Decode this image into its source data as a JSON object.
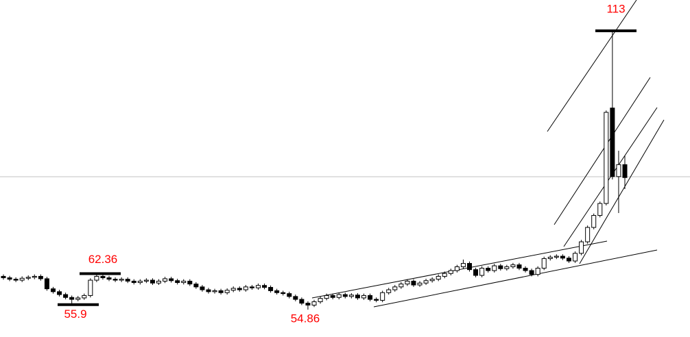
{
  "chart_data": {
    "type": "candlestick",
    "open": [
      61.8,
      61.5,
      61.2,
      61.0,
      61.4,
      61.6,
      61.8,
      61.3,
      59.2,
      58.6,
      58.0,
      57.4,
      57.0,
      57.3,
      57.8,
      61.0,
      61.8,
      61.5,
      61.2,
      61.0,
      61.2,
      60.8,
      60.5,
      60.8,
      61.0,
      60.4,
      60.8,
      61.3,
      60.9,
      60.5,
      60.8,
      60.2,
      59.6,
      59.0,
      58.6,
      58.8,
      58.4,
      58.9,
      59.3,
      59.0,
      59.6,
      59.4,
      59.9,
      59.5,
      58.8,
      58.4,
      58.2,
      57.6,
      57.0,
      56.2,
      55.8,
      56.5,
      57.2,
      57.8,
      57.4,
      58.0,
      57.6,
      57.9,
      57.3,
      57.8,
      57.0,
      56.8,
      58.4,
      59.0,
      59.6,
      60.2,
      60.8,
      60.0,
      60.4,
      60.9,
      61.2,
      61.8,
      62.4,
      63.0,
      63.8,
      64.5,
      63.2,
      62.0,
      63.5,
      63.0,
      64.0,
      63.4,
      63.8,
      64.2,
      63.5,
      63.0,
      62.2,
      63.5,
      65.5,
      65.8,
      66.0,
      65.6,
      65.0,
      66.6,
      69.0,
      72.0,
      74.5,
      77.0,
      96.9,
      82.6,
      85.1
    ],
    "high": [
      62.2,
      61.9,
      61.6,
      61.8,
      62.0,
      62.2,
      62.2,
      61.7,
      59.6,
      59.0,
      58.4,
      57.8,
      57.7,
      58.2,
      61.4,
      62.36,
      62.2,
      61.9,
      61.6,
      61.6,
      61.6,
      61.2,
      61.2,
      61.4,
      61.4,
      61.2,
      61.7,
      61.7,
      61.3,
      61.2,
      61.2,
      60.6,
      60.0,
      59.4,
      59.2,
      59.2,
      59.3,
      59.7,
      59.7,
      60.0,
      60.0,
      60.3,
      60.3,
      59.9,
      59.2,
      58.8,
      58.6,
      58.0,
      57.4,
      56.6,
      56.9,
      57.6,
      58.2,
      58.2,
      58.4,
      58.4,
      58.3,
      58.3,
      58.2,
      58.2,
      57.4,
      58.8,
      59.4,
      60.0,
      60.6,
      61.2,
      61.2,
      60.8,
      61.3,
      61.6,
      62.2,
      62.8,
      63.4,
      64.2,
      65.3,
      64.9,
      63.6,
      63.9,
      63.9,
      64.4,
      64.4,
      64.2,
      64.6,
      64.6,
      63.9,
      63.4,
      63.9,
      65.9,
      66.2,
      66.4,
      66.4,
      66.0,
      67.0,
      69.4,
      72.4,
      74.9,
      77.4,
      96.4,
      113,
      88.0,
      87.0
    ],
    "low": [
      61.1,
      60.8,
      60.6,
      60.6,
      61.0,
      61.2,
      60.9,
      58.8,
      58.2,
      57.6,
      57.0,
      55.9,
      56.6,
      56.9,
      57.4,
      60.6,
      61.1,
      60.8,
      60.6,
      60.6,
      60.4,
      60.1,
      60.1,
      60.4,
      60.0,
      60.0,
      60.4,
      60.5,
      60.1,
      60.1,
      59.8,
      59.2,
      58.6,
      58.2,
      58.2,
      58.0,
      58.0,
      58.5,
      58.6,
      58.6,
      59.0,
      59.0,
      59.1,
      58.4,
      58.0,
      57.8,
      57.2,
      56.6,
      55.8,
      54.86,
      55.4,
      56.1,
      56.8,
      57.0,
      57.0,
      57.2,
      57.2,
      56.9,
      56.9,
      56.6,
      56.4,
      56.4,
      58.0,
      58.6,
      59.2,
      59.8,
      59.6,
      59.6,
      60.0,
      60.5,
      60.8,
      61.4,
      62.0,
      62.6,
      63.4,
      62.8,
      61.6,
      61.6,
      62.6,
      62.6,
      63.0,
      63.0,
      63.4,
      63.1,
      62.6,
      61.8,
      61.8,
      63.1,
      65.1,
      65.4,
      65.2,
      64.6,
      64.6,
      66.2,
      68.6,
      71.6,
      74.1,
      76.6,
      82.0,
      75.0,
      80.0
    ],
    "close": [
      61.5,
      61.2,
      61.0,
      61.4,
      61.6,
      61.8,
      61.3,
      59.2,
      58.6,
      58.0,
      57.4,
      57.0,
      57.3,
      57.8,
      61.0,
      61.8,
      61.5,
      61.2,
      61.0,
      61.2,
      60.8,
      60.5,
      60.8,
      61.0,
      60.4,
      60.8,
      61.3,
      60.9,
      60.5,
      60.8,
      60.2,
      59.6,
      59.0,
      58.6,
      58.8,
      58.4,
      58.9,
      59.3,
      59.0,
      59.6,
      59.4,
      59.9,
      59.5,
      58.8,
      58.4,
      58.2,
      57.6,
      57.0,
      56.2,
      55.8,
      56.5,
      57.2,
      57.8,
      57.4,
      58.0,
      57.6,
      57.9,
      57.3,
      57.8,
      57.0,
      56.8,
      58.4,
      59.0,
      59.6,
      60.2,
      60.8,
      60.0,
      60.4,
      60.9,
      61.2,
      61.8,
      62.4,
      63.0,
      63.8,
      64.5,
      63.2,
      62.0,
      63.5,
      63.0,
      64.0,
      63.4,
      63.8,
      64.2,
      63.5,
      63.0,
      62.2,
      63.5,
      65.5,
      65.8,
      66.0,
      65.6,
      65.0,
      66.6,
      69.0,
      72.0,
      74.5,
      77.0,
      96.0,
      82.6,
      85.1,
      82.4
    ],
    "levels": [
      113,
      62.36,
      55.9,
      54.86
    ],
    "ylim": [
      49.15,
      119.43
    ],
    "up_color": "#ffffff",
    "down_color": "#000000",
    "label_color": "#ff0000"
  }
}
